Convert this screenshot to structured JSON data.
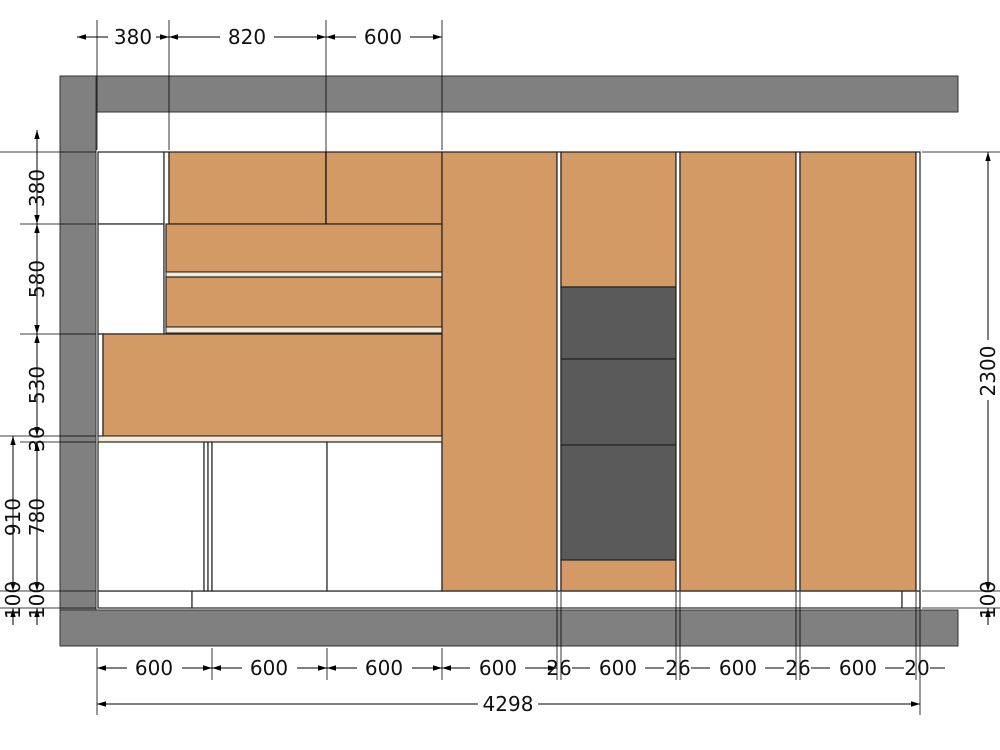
{
  "colors": {
    "wood": "#d39a66",
    "wall": "#808080",
    "dark": "#5a5a5a",
    "white": "#ffffff"
  },
  "dimensions": {
    "top": [
      "380",
      "820",
      "600"
    ],
    "left": [
      "380",
      "580",
      "530",
      "30",
      "780",
      "100"
    ],
    "left_outer": [
      "910",
      "100"
    ],
    "right": [
      "2300",
      "100"
    ],
    "bottom": [
      "600",
      "600",
      "600",
      "600",
      "26",
      "600",
      "26",
      "600",
      "26",
      "600",
      "20"
    ],
    "total": "4298"
  }
}
